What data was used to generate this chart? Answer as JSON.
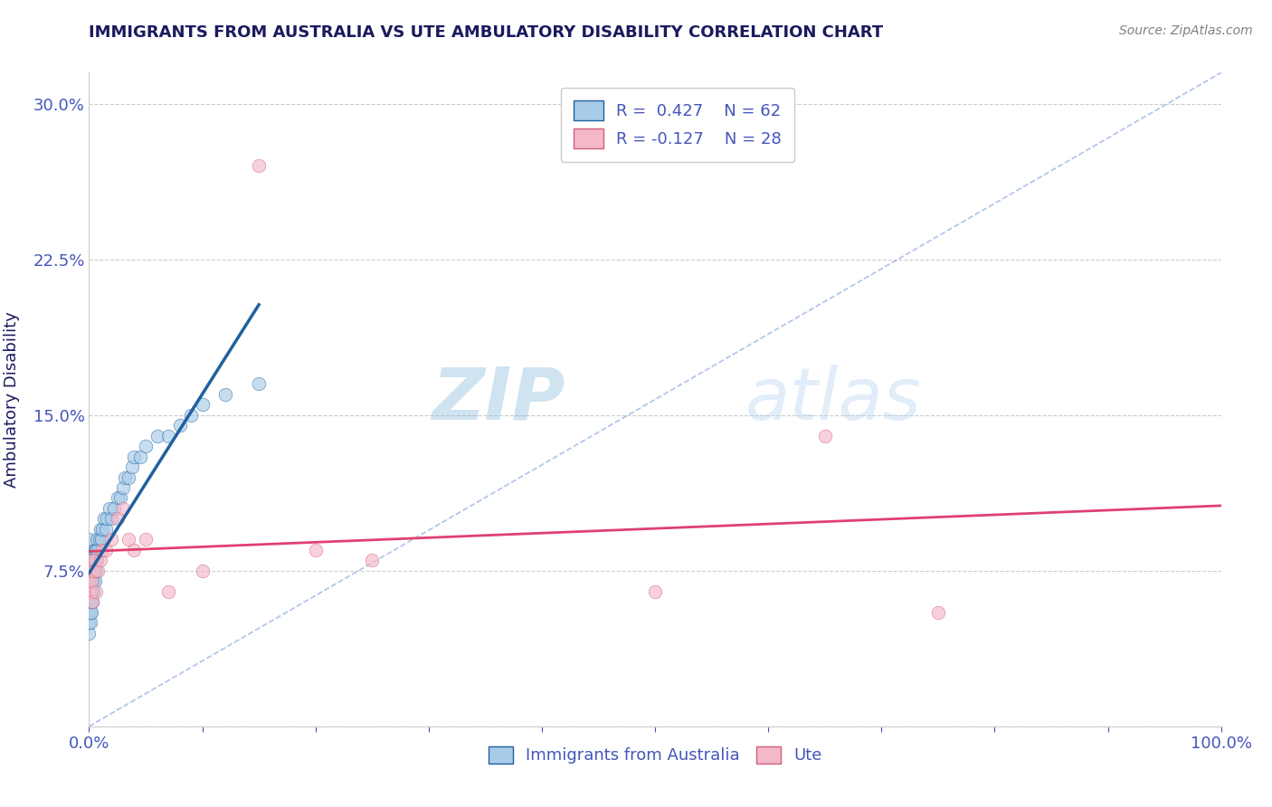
{
  "title": "IMMIGRANTS FROM AUSTRALIA VS UTE AMBULATORY DISABILITY CORRELATION CHART",
  "source": "Source: ZipAtlas.com",
  "xlabel": "",
  "ylabel": "Ambulatory Disability",
  "xlim": [
    0,
    1.0
  ],
  "ylim": [
    0.0,
    0.315
  ],
  "yticks": [
    0.0,
    0.075,
    0.15,
    0.225,
    0.3
  ],
  "ytick_labels": [
    "",
    "7.5%",
    "15.0%",
    "22.5%",
    "30.0%"
  ],
  "xtick_labels": [
    "0.0%",
    "",
    "",
    "",
    "",
    "",
    "",
    "",
    "",
    "",
    "100.0%"
  ],
  "legend_r1": "R =  0.427",
  "legend_n1": "N = 62",
  "legend_r2": "R = -0.127",
  "legend_n2": "N = 28",
  "watermark_zip": "ZIP",
  "watermark_atlas": "atlas",
  "blue_color": "#a8cce8",
  "pink_color": "#f4b8c8",
  "blue_line_color": "#2060a0",
  "pink_line_color": "#e04070",
  "title_color": "#1a1a5e",
  "axis_color": "#4455bb",
  "blue_scatter_x": [
    0.0,
    0.0,
    0.0,
    0.0,
    0.0,
    0.0,
    0.0,
    0.0,
    0.0,
    0.0,
    0.001,
    0.001,
    0.001,
    0.001,
    0.001,
    0.001,
    0.002,
    0.002,
    0.002,
    0.002,
    0.002,
    0.003,
    0.003,
    0.003,
    0.003,
    0.004,
    0.004,
    0.004,
    0.005,
    0.005,
    0.005,
    0.006,
    0.006,
    0.007,
    0.007,
    0.008,
    0.009,
    0.01,
    0.011,
    0.012,
    0.013,
    0.015,
    0.016,
    0.018,
    0.02,
    0.022,
    0.025,
    0.028,
    0.03,
    0.032,
    0.035,
    0.038,
    0.04,
    0.045,
    0.05,
    0.06,
    0.07,
    0.08,
    0.09,
    0.1,
    0.12,
    0.15
  ],
  "blue_scatter_y": [
    0.045,
    0.05,
    0.055,
    0.06,
    0.065,
    0.07,
    0.075,
    0.08,
    0.085,
    0.09,
    0.05,
    0.055,
    0.06,
    0.065,
    0.07,
    0.075,
    0.055,
    0.06,
    0.065,
    0.07,
    0.08,
    0.06,
    0.065,
    0.07,
    0.075,
    0.065,
    0.07,
    0.08,
    0.07,
    0.075,
    0.085,
    0.075,
    0.085,
    0.08,
    0.09,
    0.085,
    0.09,
    0.095,
    0.09,
    0.095,
    0.1,
    0.095,
    0.1,
    0.105,
    0.1,
    0.105,
    0.11,
    0.11,
    0.115,
    0.12,
    0.12,
    0.125,
    0.13,
    0.13,
    0.135,
    0.14,
    0.14,
    0.145,
    0.15,
    0.155,
    0.16,
    0.165
  ],
  "pink_scatter_x": [
    0.0,
    0.0,
    0.0,
    0.001,
    0.002,
    0.002,
    0.003,
    0.004,
    0.005,
    0.006,
    0.008,
    0.01,
    0.012,
    0.015,
    0.02,
    0.025,
    0.03,
    0.035,
    0.04,
    0.05,
    0.07,
    0.1,
    0.15,
    0.2,
    0.25,
    0.5,
    0.65,
    0.75
  ],
  "pink_scatter_y": [
    0.065,
    0.07,
    0.075,
    0.065,
    0.07,
    0.08,
    0.06,
    0.075,
    0.08,
    0.065,
    0.075,
    0.08,
    0.085,
    0.085,
    0.09,
    0.1,
    0.105,
    0.09,
    0.085,
    0.09,
    0.065,
    0.075,
    0.27,
    0.085,
    0.08,
    0.065,
    0.14,
    0.055
  ]
}
